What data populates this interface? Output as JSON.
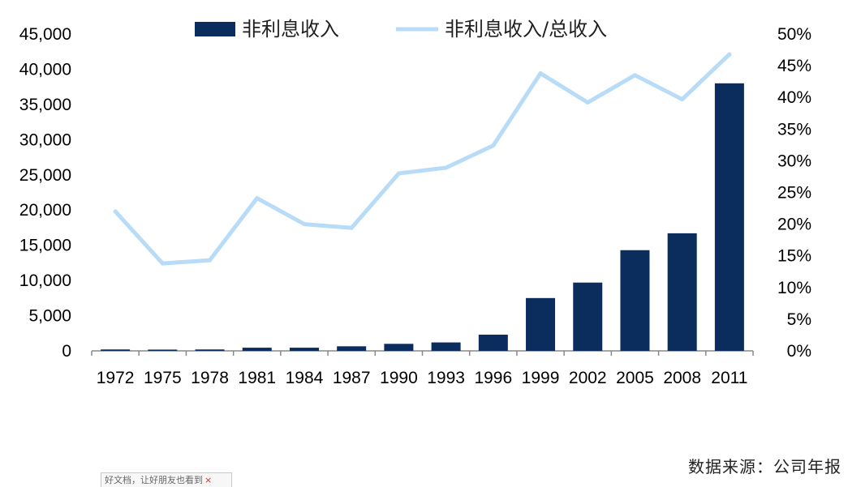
{
  "chart_data": {
    "type": "bar",
    "categories": [
      "1972",
      "1975",
      "1978",
      "1981",
      "1984",
      "1987",
      "1990",
      "1993",
      "1996",
      "1999",
      "2002",
      "2005",
      "2008",
      "2011"
    ],
    "series": [
      {
        "name": "非利息收入",
        "type": "bar",
        "axis": "left",
        "color": "#0b2d5e",
        "values": [
          200,
          180,
          200,
          450,
          450,
          650,
          1000,
          1200,
          2300,
          7500,
          9700,
          14300,
          16700,
          38000
        ]
      },
      {
        "name": "非利息收入/总收入",
        "type": "line",
        "axis": "right",
        "color": "#b8dcf7",
        "values": [
          0.22,
          0.138,
          0.143,
          0.241,
          0.2,
          0.194,
          0.28,
          0.289,
          0.324,
          0.438,
          0.392,
          0.435,
          0.397,
          0.468
        ]
      }
    ],
    "y_left": {
      "ylim": [
        0,
        45000
      ],
      "ticks": [
        "0",
        "5,000",
        "10,000",
        "15,000",
        "20,000",
        "25,000",
        "30,000",
        "35,000",
        "40,000",
        "45,000"
      ]
    },
    "y_right": {
      "ylim": [
        0,
        0.5
      ],
      "ticks": [
        "0%",
        "5%",
        "10%",
        "15%",
        "20%",
        "25%",
        "30%",
        "35%",
        "40%",
        "45%",
        "50%"
      ]
    },
    "legend": "top",
    "grid": false
  },
  "source_note": "数据来源：公司年报",
  "watermark": {
    "text": "好文档，让好朋友也看到",
    "close": "×"
  }
}
